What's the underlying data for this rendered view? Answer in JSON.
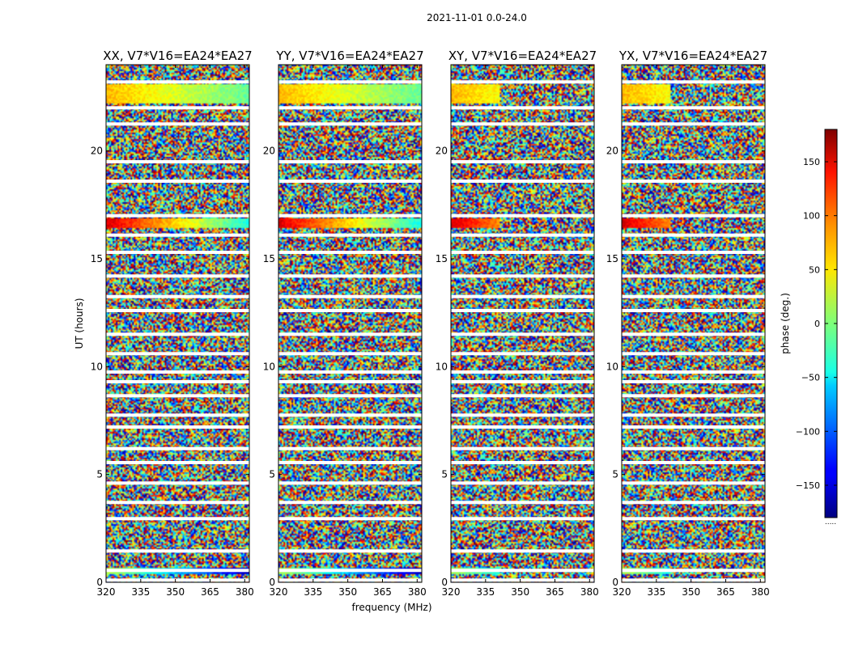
{
  "figure": {
    "title": "2021-11-01 0.0-24.0",
    "xlabel": "frequency (MHz)",
    "ylabel": "UT (hours)",
    "colorbar_label": "phase (deg.)",
    "colorbar_ticks": [
      "150",
      "100",
      "50",
      "0",
      "−50",
      "−100",
      "−150"
    ],
    "colorbar_footer": "....."
  },
  "chart_data": {
    "type": "heatmap",
    "title": "2021-11-01 0.0-24.0",
    "xlabel": "frequency (MHz)",
    "ylabel": "UT (hours)",
    "x_range": [
      320,
      382
    ],
    "y_range": [
      0,
      24
    ],
    "x_ticks": [
      320,
      335,
      350,
      365,
      380
    ],
    "x_tick_labels": [
      "320",
      "335",
      "350",
      "365",
      "380"
    ],
    "y_ticks": [
      0,
      5,
      10,
      15,
      20
    ],
    "y_tick_labels": [
      "0",
      "5",
      "10",
      "15",
      "20"
    ],
    "colorbar": {
      "label": "phase (deg.)",
      "range": [
        -180,
        180
      ],
      "ticks": [
        150,
        100,
        50,
        0,
        -50,
        -100,
        -150
      ],
      "colormap": "jet"
    },
    "panels": [
      {
        "title": "XX, V7*V16=EA24*EA27",
        "polarization": "XX",
        "baseline": "V7*V16=EA24*EA27"
      },
      {
        "title": "YY, V7*V16=EA24*EA27",
        "polarization": "YY",
        "baseline": "V7*V16=EA24*EA27"
      },
      {
        "title": "XY, V7*V16=EA24*EA27",
        "polarization": "XY",
        "baseline": "V7*V16=EA24*EA27"
      },
      {
        "title": "YX, V7*V16=EA24*EA27",
        "polarization": "YX",
        "baseline": "V7*V16=EA24*EA27"
      }
    ],
    "flagged_ut_hours": [
      0.1,
      0.55,
      1.45,
      2.95,
      3.7,
      4.6,
      5.55,
      6.2,
      7.2,
      7.75,
      8.65,
      9.3,
      9.75,
      10.6,
      11.5,
      12.6,
      13.25,
      14.2,
      15.3,
      16.1,
      17.0,
      18.6,
      19.5,
      21.25,
      22.0,
      23.2
    ],
    "calibrator_scans": [
      {
        "ut_start": 0.45,
        "ut_end": 0.7,
        "phase_start_deg": 20,
        "phase_end_deg": -160
      },
      {
        "ut_start": 16.5,
        "ut_end": 16.9,
        "phase_start_deg": 150,
        "phase_end_deg": -40
      },
      {
        "ut_start": 22.3,
        "ut_end": 23.1,
        "phase_start_deg": 70,
        "phase_end_deg": -10
      }
    ]
  }
}
